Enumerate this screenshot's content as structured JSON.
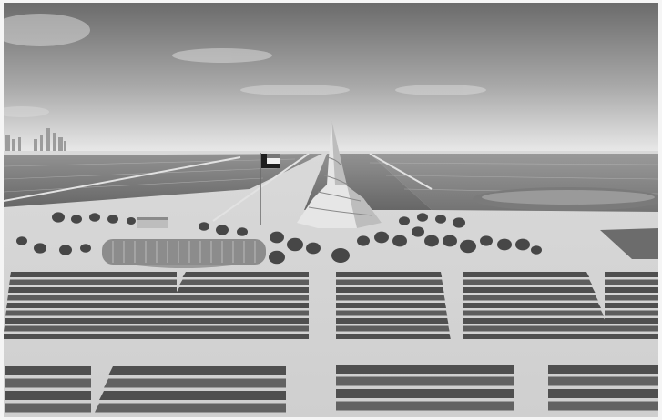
{
  "image": {
    "kind": "grayscale-rendering",
    "subject": "solar-park",
    "icons": [
      "flag-icon",
      "tower",
      "solar-panel-rows",
      "trees",
      "city-skyline"
    ],
    "colors": {
      "sky_top": "#6f6f6f",
      "sky_bottom": "#e9e9e9",
      "ground": "#d6d6d6",
      "panel": "#5c5c5c",
      "panel_dark": "#3d3d3d",
      "tree": "#4a4a4a",
      "border": "#f5f5f5"
    }
  }
}
